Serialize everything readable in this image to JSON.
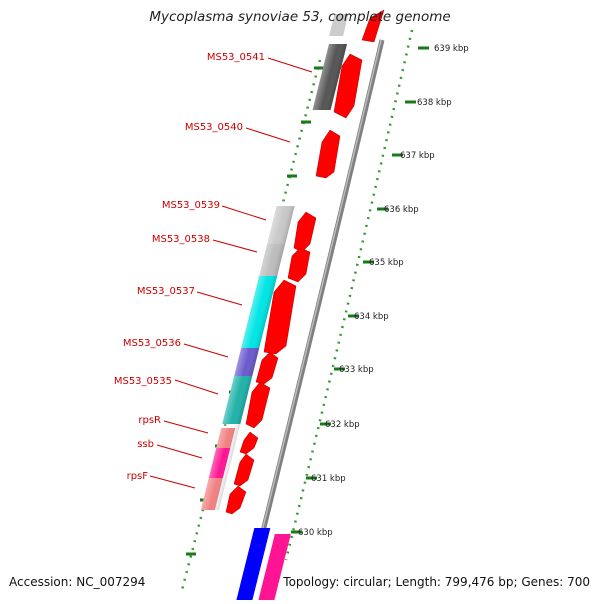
{
  "title": "Mycoplasma synoviae 53, complete genome",
  "footer": {
    "accession": "Accession: NC_007294",
    "topology": "Topology: circular; Length: 799,476 bp; Genes: 700"
  },
  "ruler_ticks": [
    "639 kbp",
    "638 kbp",
    "637 kbp",
    "636 kbp",
    "635 kbp",
    "634 kbp",
    "633 kbp",
    "632 kbp",
    "631 kbp",
    "630 kbp"
  ],
  "gene_labels": [
    "MS53_0541",
    "MS53_0540",
    "MS53_0539",
    "MS53_0538",
    "MS53_0537",
    "MS53_0536",
    "MS53_0535",
    "rpsR",
    "ssb",
    "rpsF"
  ],
  "colors": {
    "gene_arrow": "#ff0000",
    "backbone": "#808080",
    "label_text": "#cc0000",
    "dotted_ring": "#2e9c2e",
    "kbp_tick": "#1a7a1a",
    "feature_dark_gray": "#555555",
    "feature_light_gray": "#cccccc",
    "feature_cyan": "#00e5e5",
    "feature_purple": "#6a5acd",
    "feature_teal": "#20b2aa",
    "feature_salmon": "#f08080",
    "feature_magenta": "#ff1493",
    "feature_blue": "#0000ff"
  }
}
